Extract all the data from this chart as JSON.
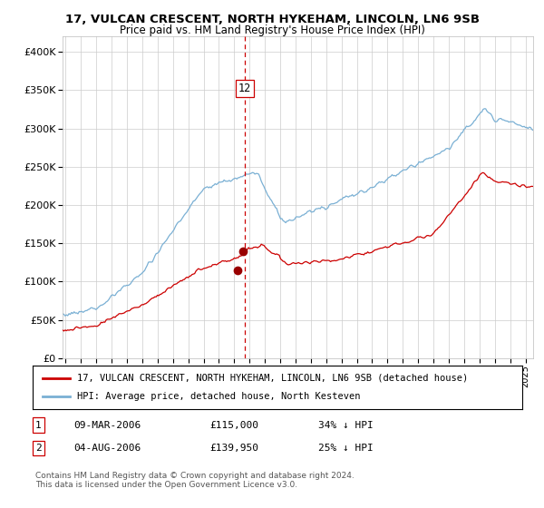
{
  "title": "17, VULCAN CRESCENT, NORTH HYKEHAM, LINCOLN, LN6 9SB",
  "subtitle": "Price paid vs. HM Land Registry's House Price Index (HPI)",
  "red_label": "17, VULCAN CRESCENT, NORTH HYKEHAM, LINCOLN, LN6 9SB (detached house)",
  "blue_label": "HPI: Average price, detached house, North Kesteven",
  "transaction1_date": "09-MAR-2006",
  "transaction1_price": "£115,000",
  "transaction1_hpi": "34% ↓ HPI",
  "transaction2_date": "04-AUG-2006",
  "transaction2_price": "£139,950",
  "transaction2_hpi": "25% ↓ HPI",
  "copyright_text": "Contains HM Land Registry data © Crown copyright and database right 2024.\nThis data is licensed under the Open Government Licence v3.0.",
  "vline_year": 2006.7,
  "vline_label": "12",
  "red_color": "#cc0000",
  "blue_color": "#7ab0d4",
  "dot_color": "#990000",
  "vline_color": "#cc0000",
  "grid_color": "#cccccc",
  "bg_color": "#ffffff",
  "ylim": [
    0,
    420000
  ],
  "xlim_start": 1994.8,
  "xlim_end": 2025.5,
  "yticks": [
    0,
    50000,
    100000,
    150000,
    200000,
    250000,
    300000,
    350000,
    400000
  ],
  "ylabels": [
    "£0",
    "£50K",
    "£100K",
    "£150K",
    "£200K",
    "£250K",
    "£300K",
    "£350K",
    "£400K"
  ],
  "t1_x": 2006.19,
  "t1_y": 115000,
  "t2_x": 2006.58,
  "t2_y": 139950
}
